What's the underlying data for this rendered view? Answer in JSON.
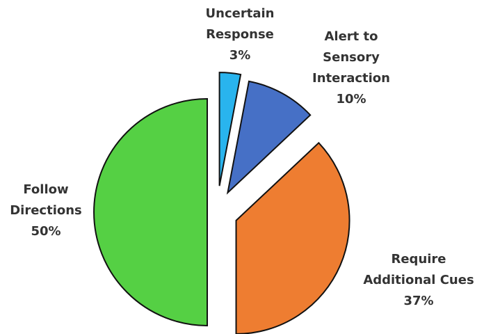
{
  "chart_data": {
    "type": "pie",
    "categories": [
      "Uncertain Response",
      "Alert to Sensory Interaction",
      "Require Additional Cues",
      "Follow Directions"
    ],
    "values": [
      3,
      10,
      37,
      50
    ],
    "value_labels": [
      "3%",
      "10%",
      "37%",
      "50%"
    ],
    "colors": [
      "#29b4ee",
      "#4670c6",
      "#ee7d31",
      "#55d044"
    ]
  }
}
